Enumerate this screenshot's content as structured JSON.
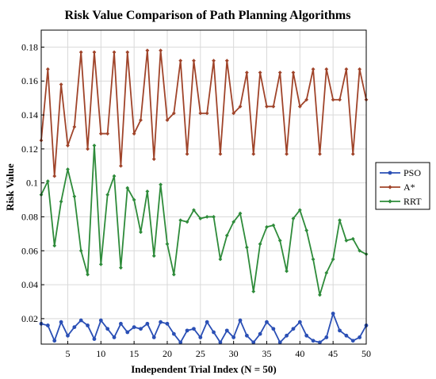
{
  "chart_data": {
    "type": "line",
    "title": "Risk Value Comparison of Path Planning Algorithms",
    "xlabel": "Independent Trial Index (N = 50)",
    "ylabel": "Risk Value",
    "xlim": [
      1,
      50
    ],
    "ylim": [
      0.005,
      0.19
    ],
    "xticks": [
      5,
      10,
      15,
      20,
      25,
      30,
      35,
      40,
      45,
      50
    ],
    "yticks": [
      0.02,
      0.04,
      0.06,
      0.08,
      0.1,
      0.12,
      0.14,
      0.16,
      0.18
    ],
    "ytick_labels": [
      "0.02",
      "0.04",
      "0.06",
      "0.08",
      "0.1",
      "0.12",
      "0.14",
      "0.16",
      "0.18"
    ],
    "grid": true,
    "legend_position": "outside-right",
    "x": [
      1,
      2,
      3,
      4,
      5,
      6,
      7,
      8,
      9,
      10,
      11,
      12,
      13,
      14,
      15,
      16,
      17,
      18,
      19,
      20,
      21,
      22,
      23,
      24,
      25,
      26,
      27,
      28,
      29,
      30,
      31,
      32,
      33,
      34,
      35,
      36,
      37,
      38,
      39,
      40,
      41,
      42,
      43,
      44,
      45,
      46,
      47,
      48,
      49,
      50
    ],
    "series": [
      {
        "name": "PSO",
        "color": "#2a4fb5",
        "marker": "circle",
        "values": [
          0.017,
          0.016,
          0.007,
          0.018,
          0.01,
          0.015,
          0.019,
          0.016,
          0.008,
          0.019,
          0.014,
          0.009,
          0.017,
          0.012,
          0.015,
          0.014,
          0.017,
          0.009,
          0.018,
          0.017,
          0.011,
          0.006,
          0.013,
          0.014,
          0.009,
          0.018,
          0.012,
          0.006,
          0.013,
          0.009,
          0.019,
          0.01,
          0.006,
          0.011,
          0.018,
          0.014,
          0.006,
          0.01,
          0.014,
          0.018,
          0.01,
          0.007,
          0.006,
          0.009,
          0.023,
          0.013,
          0.01,
          0.007,
          0.009,
          0.016
        ]
      },
      {
        "name": "A*",
        "color": "#a0442a",
        "marker": "diamond",
        "values": [
          0.125,
          0.167,
          0.104,
          0.158,
          0.122,
          0.133,
          0.177,
          0.12,
          0.177,
          0.129,
          0.129,
          0.177,
          0.11,
          0.177,
          0.129,
          0.137,
          0.178,
          0.114,
          0.178,
          0.137,
          0.141,
          0.172,
          0.117,
          0.172,
          0.141,
          0.141,
          0.172,
          0.117,
          0.172,
          0.141,
          0.145,
          0.165,
          0.117,
          0.165,
          0.145,
          0.145,
          0.165,
          0.117,
          0.165,
          0.145,
          0.149,
          0.167,
          0.117,
          0.167,
          0.149,
          0.149,
          0.167,
          0.117,
          0.167,
          0.149
        ]
      },
      {
        "name": "RRT",
        "color": "#2e8b3a",
        "marker": "diamond",
        "values": [
          0.093,
          0.101,
          0.063,
          0.089,
          0.108,
          0.092,
          0.06,
          0.046,
          0.122,
          0.052,
          0.093,
          0.104,
          0.05,
          0.097,
          0.09,
          0.071,
          0.095,
          0.057,
          0.099,
          0.064,
          0.046,
          0.078,
          0.077,
          0.084,
          0.079,
          0.08,
          0.08,
          0.055,
          0.069,
          0.077,
          0.082,
          0.062,
          0.036,
          0.064,
          0.074,
          0.075,
          0.066,
          0.048,
          0.079,
          0.084,
          0.072,
          0.055,
          0.034,
          0.047,
          0.055,
          0.078,
          0.066,
          0.067,
          0.06,
          0.058
        ]
      }
    ]
  }
}
